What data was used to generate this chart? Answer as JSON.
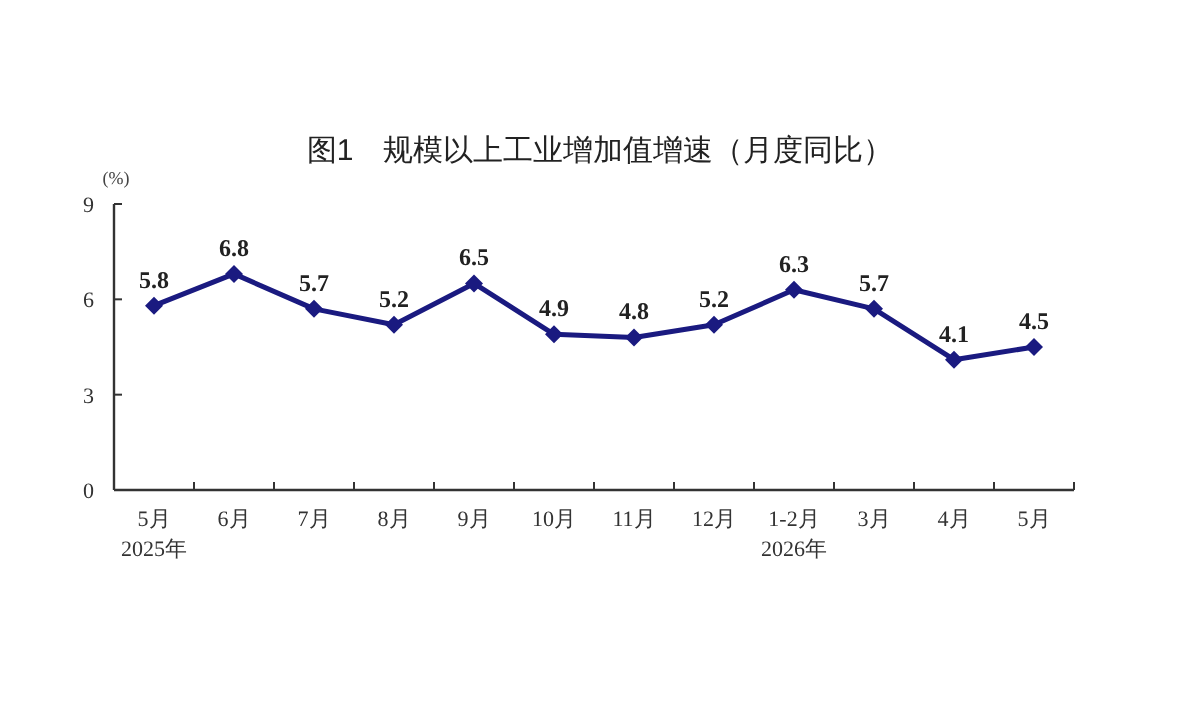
{
  "chart_data": {
    "type": "line",
    "title": "图1　规模以上工业增加值增速（月度同比）",
    "ylabel": "(%)",
    "categories": [
      "5月\n2025年",
      "6月",
      "7月",
      "8月",
      "9月",
      "10月",
      "11月",
      "12月",
      "1-2月\n2026年",
      "3月",
      "4月",
      "5月"
    ],
    "series": [
      {
        "color": "#1a1a80",
        "values": [
          5.8,
          6.8,
          5.7,
          5.2,
          6.5,
          4.9,
          4.8,
          5.2,
          6.3,
          5.7,
          4.1,
          4.5
        ]
      }
    ],
    "ylim": [
      0,
      9
    ],
    "yticks": [
      0,
      3,
      6,
      9
    ],
    "marker": "diamond",
    "line_style": "solid",
    "data_labels": true
  }
}
